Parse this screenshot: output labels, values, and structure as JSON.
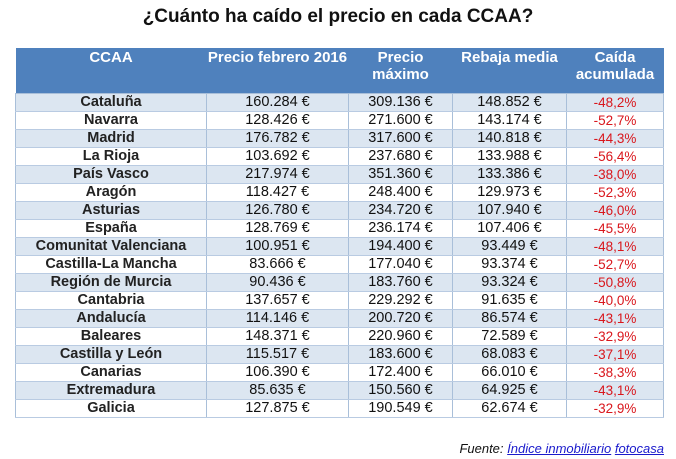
{
  "title": "¿Cuánto ha caído el precio en cada CCAA?",
  "table": {
    "headers": [
      "CCAA",
      "Precio febrero 2016",
      "Precio máximo",
      "Rebaja media",
      "Caída acumulada"
    ],
    "rows": [
      [
        "Cataluña",
        "160.284 €",
        "309.136 €",
        "148.852 €",
        "-48,2%"
      ],
      [
        "Navarra",
        "128.426 €",
        "271.600 €",
        "143.174 €",
        "-52,7%"
      ],
      [
        "Madrid",
        "176.782 €",
        "317.600 €",
        "140.818 €",
        "-44,3%"
      ],
      [
        "La Rioja",
        "103.692 €",
        "237.680 €",
        "133.988 €",
        "-56,4%"
      ],
      [
        "País Vasco",
        "217.974 €",
        "351.360 €",
        "133.386 €",
        "-38,0%"
      ],
      [
        "Aragón",
        "118.427 €",
        "248.400 €",
        "129.973 €",
        "-52,3%"
      ],
      [
        "Asturias",
        "126.780 €",
        "234.720 €",
        "107.940 €",
        "-46,0%"
      ],
      [
        "España",
        "128.769 €",
        "236.174 €",
        "107.406 €",
        "-45,5%"
      ],
      [
        "Comunitat Valenciana",
        "100.951 €",
        "194.400 €",
        "93.449 €",
        "-48,1%"
      ],
      [
        "Castilla-La Mancha",
        "83.666 €",
        "177.040 €",
        "93.374 €",
        "-52,7%"
      ],
      [
        "Región de Murcia",
        "90.436 €",
        "183.760 €",
        "93.324 €",
        "-50,8%"
      ],
      [
        "Cantabria",
        "137.657 €",
        "229.292 €",
        "91.635 €",
        "-40,0%"
      ],
      [
        "Andalucía",
        "114.146 €",
        "200.720 €",
        "86.574 €",
        "-43,1%"
      ],
      [
        "Baleares",
        "148.371 €",
        "220.960 €",
        "72.589 €",
        "-32,9%"
      ],
      [
        "Castilla y León",
        "115.517 €",
        "183.600 €",
        "68.083 €",
        "-37,1%"
      ],
      [
        "Canarias",
        "106.390 €",
        "172.400 €",
        "66.010 €",
        "-38,3%"
      ],
      [
        "Extremadura",
        "85.635 €",
        "150.560 €",
        "64.925 €",
        "-43,1%"
      ],
      [
        "Galicia",
        "127.875 €",
        "190.549 €",
        "62.674 €",
        "-32,9%"
      ]
    ]
  },
  "source": {
    "label": "Fuente:",
    "link1": "Índice inmobiliario",
    "link2": "fotocasa"
  },
  "colors": {
    "header": "#4f81bd",
    "stripe": "#dce6f1",
    "negative": "#d9161c"
  }
}
